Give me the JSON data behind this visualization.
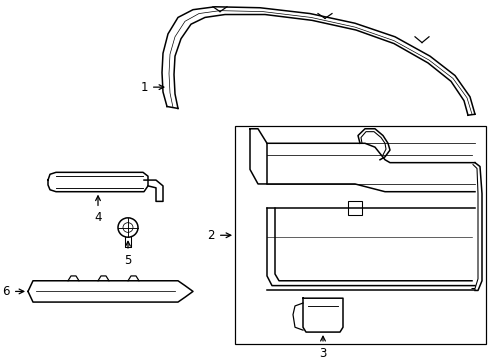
{
  "bg_color": "#ffffff",
  "line_color": "#000000",
  "fig_width": 4.89,
  "fig_height": 3.6,
  "dpi": 100,
  "lw": 1.1
}
